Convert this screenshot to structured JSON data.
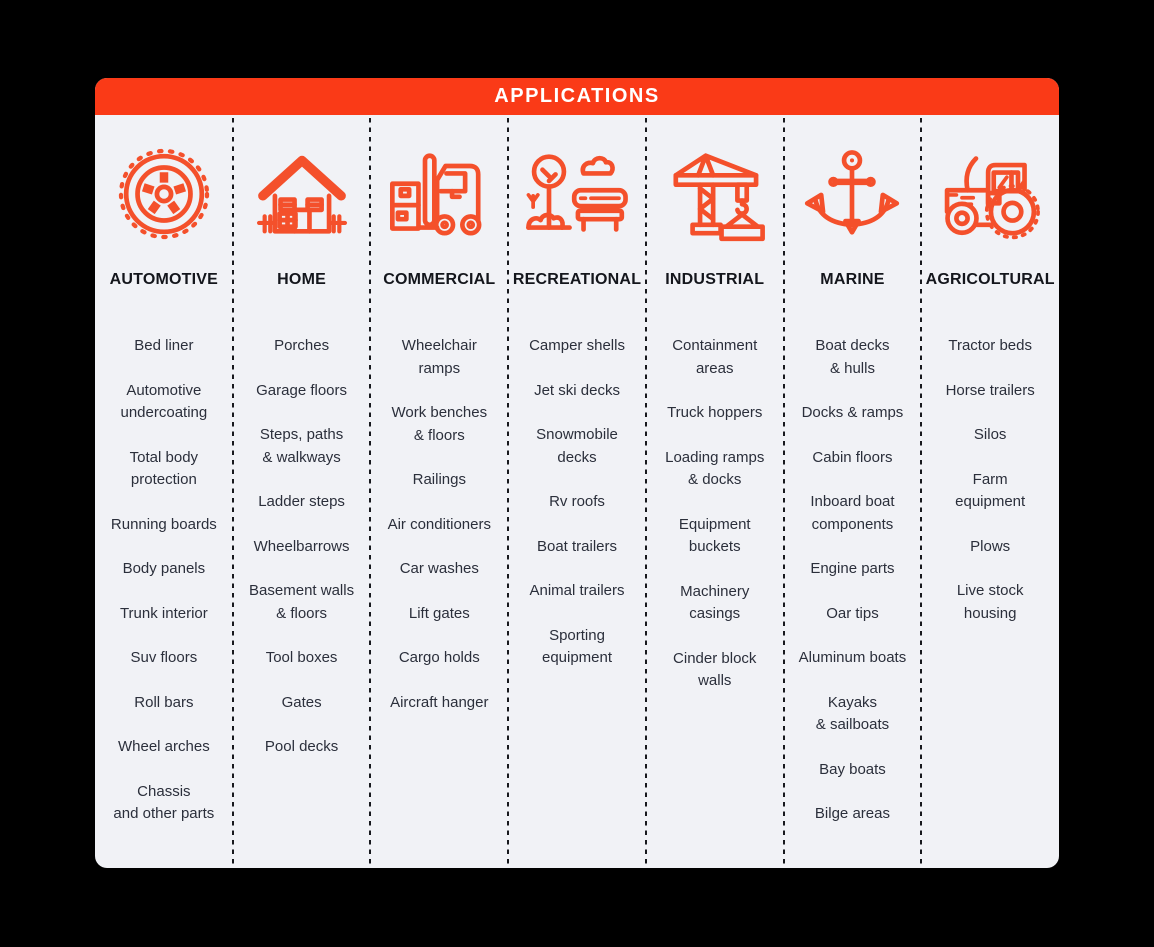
{
  "header": {
    "title": "APPLICATIONS"
  },
  "colors": {
    "accent_orange": "#FA3A17",
    "icon_orange": "#F4502B",
    "text_dark": "#2B2F3B",
    "label_dark": "#14161C",
    "card_bg": "#F1F2F6",
    "page_bg": "#000000"
  },
  "columns": [
    {
      "label": "AUTOMOTIVE",
      "icon": "tire-icon",
      "items": [
        "Bed liner",
        "Automotive\nundercoating",
        "Total body\nprotection",
        "Running boards",
        "Body panels",
        "Trunk interior",
        "Suv floors",
        "Roll bars",
        "Wheel arches",
        "Chassis\nand other parts"
      ]
    },
    {
      "label": "HOME",
      "icon": "house-icon",
      "items": [
        "Porches",
        "Garage floors",
        "Steps, paths\n& walkways",
        "Ladder steps",
        "Wheelbarrows",
        "Basement walls\n& floors",
        "Tool boxes",
        "Gates",
        "Pool decks"
      ]
    },
    {
      "label": "COMMERCIAL",
      "icon": "forklift-icon",
      "items": [
        "Wheelchair\nramps",
        "Work benches\n& floors",
        "Railings",
        "Air conditioners",
        "Car washes",
        "Lift gates",
        "Cargo holds",
        "Aircraft hanger"
      ]
    },
    {
      "label": "RECREATIONAL",
      "icon": "park-bench-icon",
      "items": [
        "Camper shells",
        "Jet ski decks",
        "Snowmobile\ndecks",
        "Rv roofs",
        "Boat trailers",
        "Animal trailers",
        "Sporting\nequipment"
      ]
    },
    {
      "label": "INDUSTRIAL",
      "icon": "crane-icon",
      "items": [
        "Containment\nareas",
        "Truck hoppers",
        "Loading ramps\n& docks",
        "Equipment\nbuckets",
        "Machinery\ncasings",
        "Cinder block\nwalls"
      ]
    },
    {
      "label": "MARINE",
      "icon": "anchor-icon",
      "items": [
        "Boat decks\n& hulls",
        "Docks & ramps",
        "Cabin floors",
        "Inboard boat\ncomponents",
        "Engine parts",
        "Oar tips",
        "Aluminum boats",
        "Kayaks\n& sailboats",
        "Bay boats",
        "Bilge areas"
      ]
    },
    {
      "label": "AGRICOLTURAL",
      "icon": "tractor-icon",
      "items": [
        "Tractor beds",
        "Horse trailers",
        "Silos",
        "Farm\nequipment",
        "Plows",
        "Live stock\nhousing"
      ]
    }
  ]
}
